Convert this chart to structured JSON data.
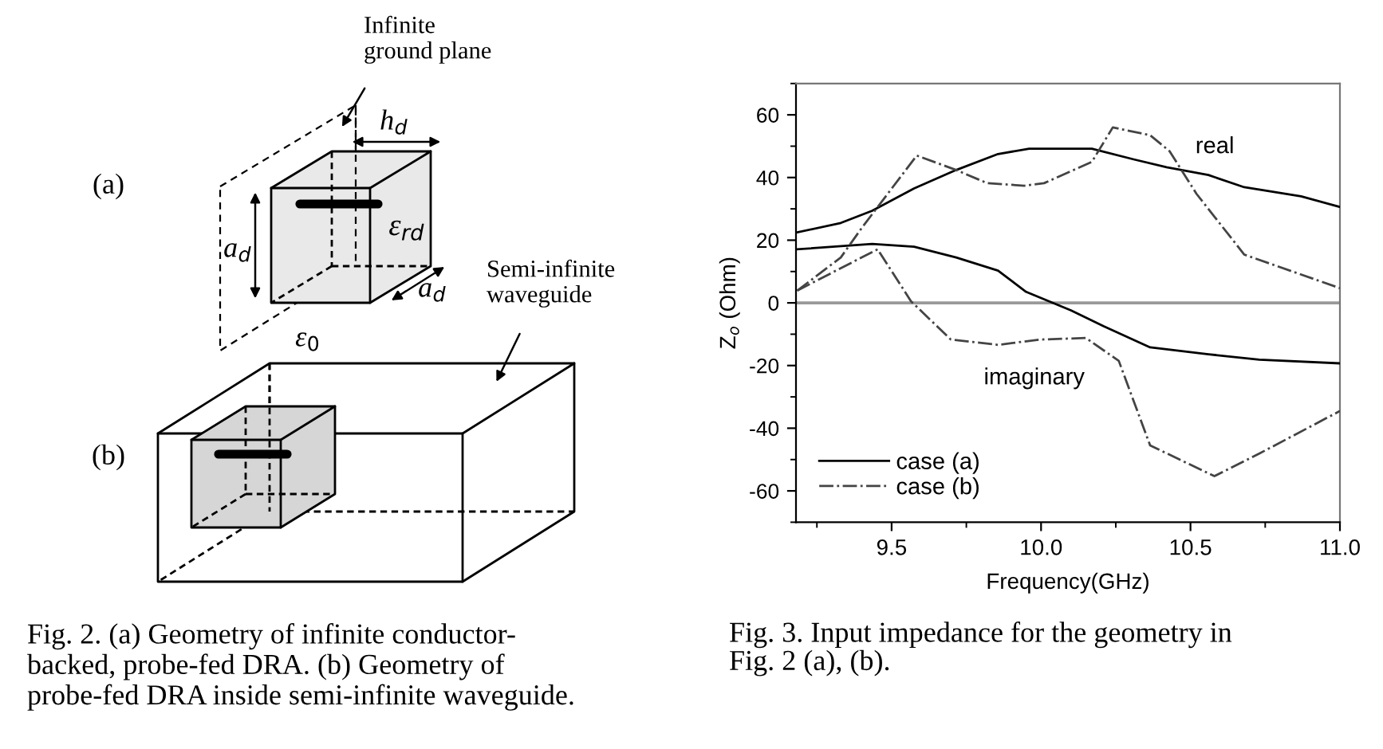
{
  "chart_data": [
    {
      "type": "other",
      "annotations": [
        "Infinite\nground plane",
        "h$_{d}$",
        "(a)",
        "a$_{d}$",
        "ε$_{rd}$",
        "a$_{d}$",
        "Semi-infinite\nwaveguide",
        "ε$_{0}$",
        "(b)",
        "Fig. 2. (a) Geometry of infinite conductor-\nbacked, probe-fed DRA. (b) Geometry of\nprobe-fed DRA inside semi-infinite waveguide."
      ]
    },
    {
      "type": "line",
      "xlabel": "Frequency(GHz)",
      "ylabel": "Z$_{o}$ (Ohm)",
      "xlim": [
        9.18,
        11.0
      ],
      "ylim": [
        -70,
        70
      ],
      "xticks": [
        9.5,
        {
          "value": 10,
          "label": "10.0"
        },
        10.5,
        {
          "value": 11,
          "label": "11.0"
        }
      ],
      "yticks": [
        -60,
        -40,
        -20,
        0,
        20,
        40,
        60
      ],
      "legend": "bottom left",
      "ref_lines": [
        {
          "axis": "y",
          "value": 0,
          "color": "#999999"
        }
      ],
      "annotations": [
        "real",
        "imaginary",
        "Fig. 3. Input impedance for the geometry in\nFig. 2 (a), (b)."
      ],
      "series": [
        {
          "name": "case (a)",
          "color": "#000000",
          "line_style": "solid",
          "x": [
            9.184,
            9.33,
            9.435,
            9.575,
            9.716,
            9.856,
            9.96,
            10.17,
            10.31,
            10.42,
            10.56,
            10.68,
            10.87,
            11.0
          ],
          "values": [
            22.5,
            25.5,
            29.4,
            36.5,
            42.4,
            47.5,
            49.2,
            49.2,
            45.8,
            43.3,
            40.8,
            36.9,
            34.0,
            30.6
          ]
        },
        {
          "color": "#000000",
          "line_style": "solid",
          "x": [
            9.184,
            9.435,
            9.575,
            9.716,
            9.856,
            9.95,
            10.1,
            10.21,
            10.365,
            10.56,
            10.73,
            11.0
          ],
          "values": [
            17.1,
            18.8,
            17.9,
            14.5,
            10.3,
            3.5,
            -2.4,
            -7.5,
            -14.2,
            -16.4,
            -18.1,
            -19.3
          ]
        },
        {
          "name": "case (b)",
          "color": "#444444",
          "line_style": "dashdot",
          "x": [
            9.184,
            9.33,
            9.4,
            9.584,
            9.716,
            9.82,
            9.944,
            10.01,
            10.17,
            10.24,
            10.365,
            10.43,
            10.52,
            10.68,
            11.0
          ],
          "values": [
            3.9,
            14.5,
            23.9,
            47.0,
            42.4,
            38.2,
            37.4,
            38.2,
            45.0,
            56.0,
            53.5,
            48.4,
            34.8,
            15.4,
            4.7
          ]
        },
        {
          "color": "#444444",
          "line_style": "dashdot",
          "x": [
            9.184,
            9.453,
            9.565,
            9.698,
            9.856,
            9.997,
            10.15,
            10.26,
            10.365,
            10.58,
            10.73,
            11.0
          ],
          "values": [
            3.9,
            17.1,
            0.5,
            -11.7,
            -13.4,
            -11.7,
            -11.2,
            -18.5,
            -45.5,
            -55.3,
            -48.1,
            -34.5
          ]
        }
      ]
    }
  ]
}
